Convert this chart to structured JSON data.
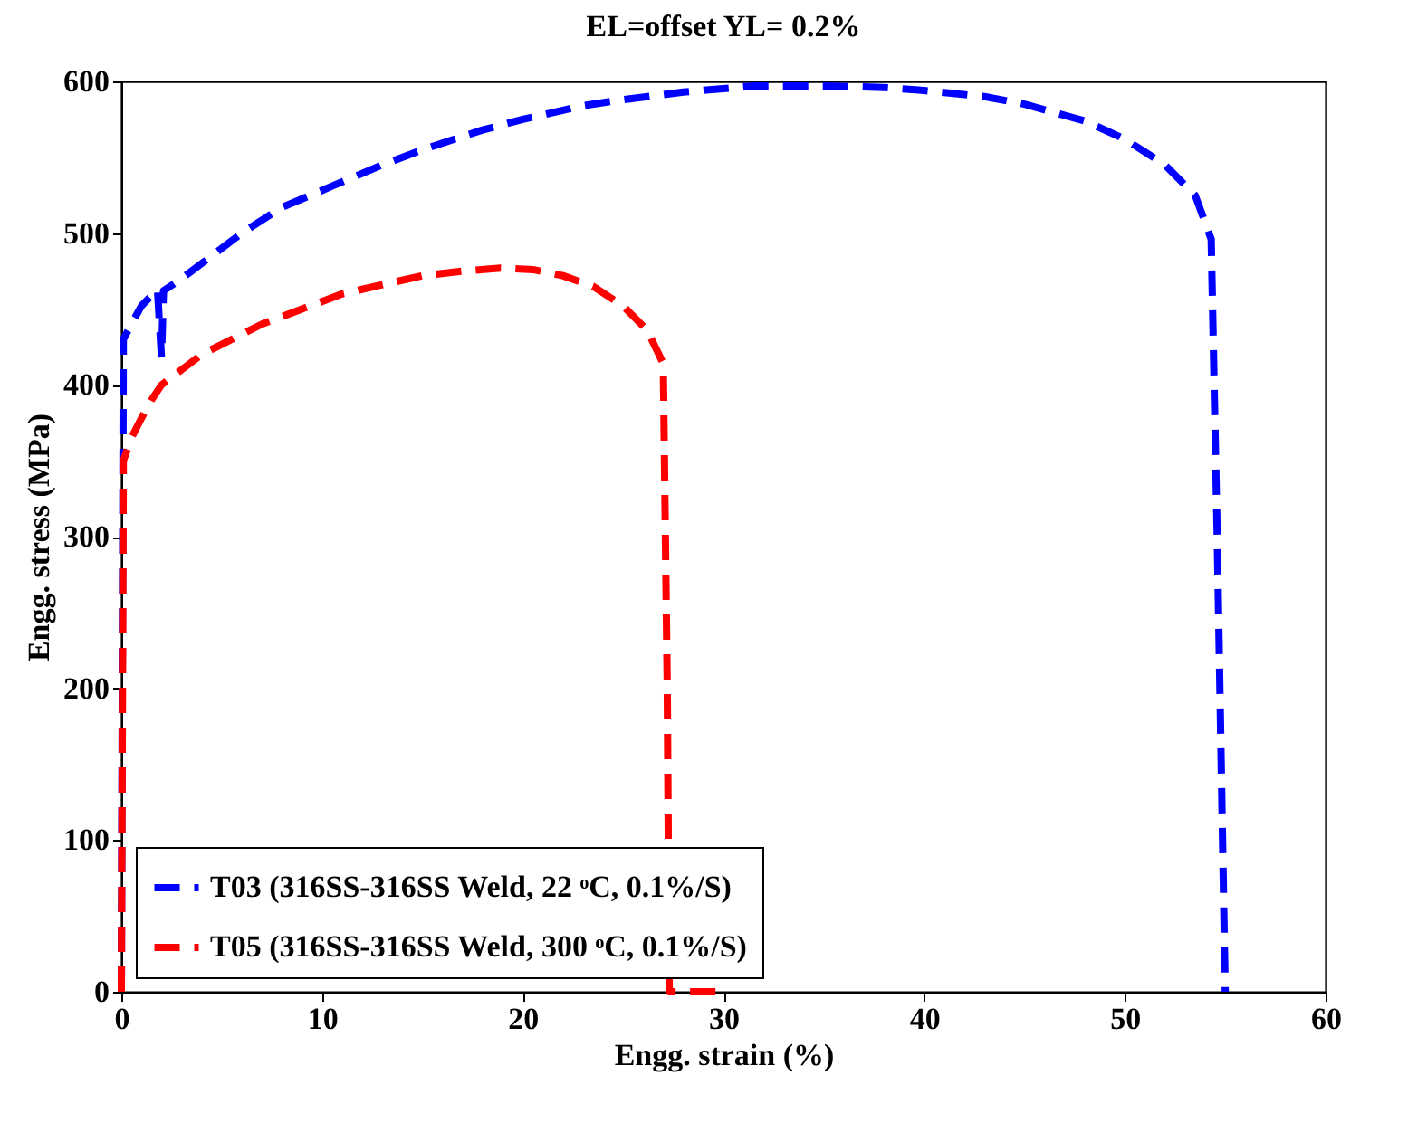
{
  "chart_data": {
    "type": "line",
    "title": "EL=offset YL= 0.2%",
    "xlabel": "Engg. strain (%)",
    "ylabel": "Engg. stress (MPa)",
    "xlim": [
      0,
      60
    ],
    "xticks": [
      0,
      10,
      20,
      30,
      40,
      50,
      60
    ],
    "ylim": [
      0,
      600
    ],
    "yticks": [
      0,
      100,
      200,
      300,
      400,
      500,
      600
    ],
    "grid": false,
    "legend": "bottom left",
    "line_style": "dashed",
    "marker": "none",
    "series": [
      {
        "name": "T03 (316SS-316SS Weld, 22 ᵒC, 0.1%/S)",
        "color": "#0000ff",
        "x": [
          0,
          0.1,
          0.5,
          1.0,
          1.8,
          2.0,
          2.1,
          3,
          4.5,
          6,
          8,
          10.5,
          13,
          15,
          18,
          20,
          23,
          25,
          28,
          31.5,
          35,
          38,
          40,
          43,
          45,
          48,
          50,
          52,
          53.5,
          54.3,
          54.6,
          55.0
        ],
        "values": [
          0,
          430,
          440,
          452,
          463,
          418,
          462,
          470,
          485,
          500,
          517,
          531,
          545,
          555,
          568,
          575,
          584,
          588,
          593,
          597,
          597,
          596,
          594,
          590,
          585,
          574,
          562,
          545,
          525,
          496,
          300,
          0
        ]
      },
      {
        "name": "T05 (316SS-316SS Weld, 300 ᵒC, 0.1%/S)",
        "color": "#ff0000",
        "x": [
          0,
          0.1,
          0.5,
          1.0,
          1.5,
          2.0,
          3,
          4,
          5.5,
          7,
          9,
          11,
          13,
          15,
          17,
          18.9,
          20.5,
          22,
          23.5,
          25,
          26.2,
          27.0,
          27.2,
          27.3,
          28.5,
          30
        ],
        "values": [
          0,
          350,
          365,
          378,
          390,
          400,
          410,
          420,
          430,
          440,
          450,
          460,
          466,
          472,
          475,
          477,
          476,
          472,
          465,
          452,
          436,
          414,
          200,
          0,
          0,
          0
        ]
      }
    ]
  }
}
